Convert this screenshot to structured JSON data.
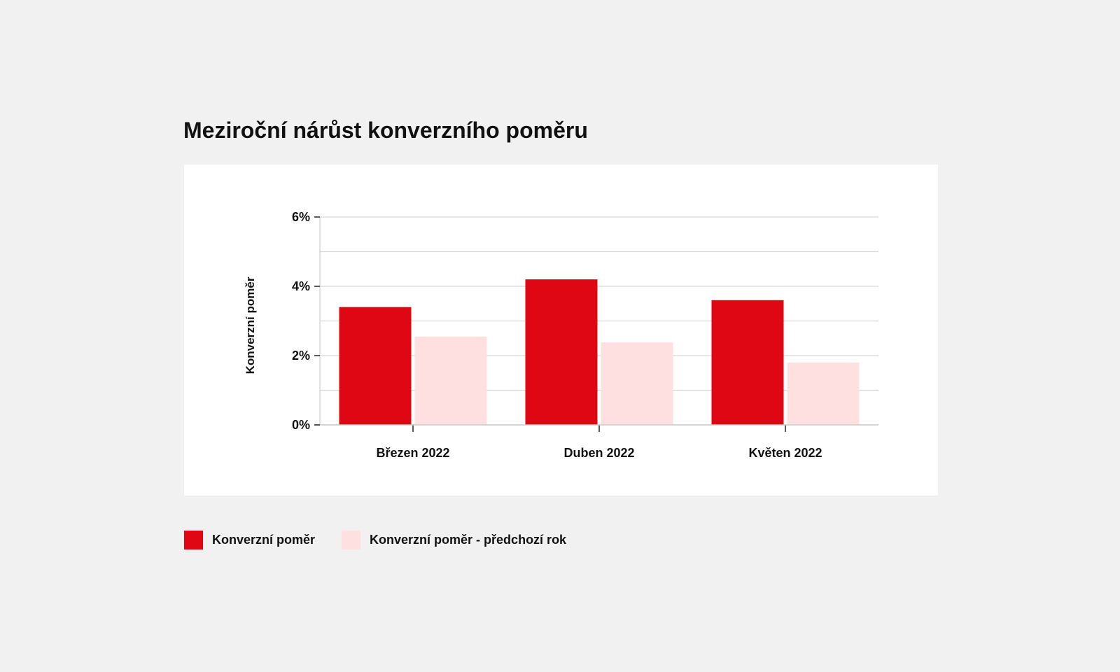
{
  "chart_data": {
    "type": "bar",
    "title": "Meziroční nárůst konverzního poměru",
    "xlabel": "",
    "ylabel": "Konverzní poměr",
    "categories": [
      "Březen 2022",
      "Duben 2022",
      "Květen 2022"
    ],
    "series": [
      {
        "name": "Konverzní poměr",
        "values": [
          3.4,
          4.2,
          3.6
        ],
        "color": "#e00714"
      },
      {
        "name": "Konverzní poměr - předchozí rok",
        "values": [
          2.55,
          2.38,
          1.8
        ],
        "color": "#fee0e1"
      }
    ],
    "ylim": [
      0,
      6
    ],
    "yticks": [
      0,
      2,
      4,
      6
    ],
    "ytick_labels": [
      "0%",
      "2%",
      "4%",
      "6%"
    ],
    "grid_step": 1,
    "grid": true,
    "legend": "bottom-left"
  }
}
